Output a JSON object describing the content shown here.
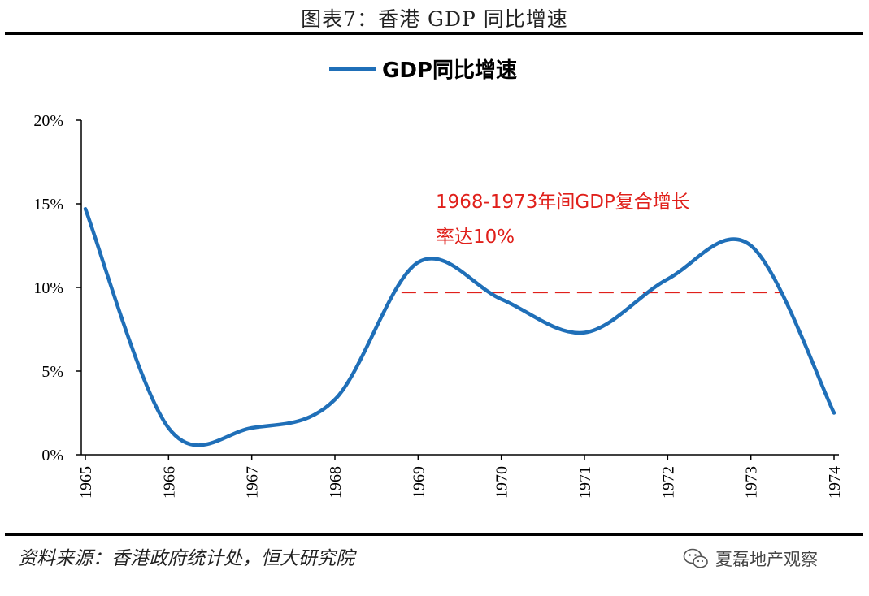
{
  "figure_title": "图表7：香港 GDP 同比增速",
  "source_text": "资料来源：香港政府统计处，恒大研究院",
  "watermark_text": "夏磊地产观察",
  "chart_data": {
    "type": "line",
    "x": [
      1965,
      1966,
      1967,
      1968,
      1969,
      1970,
      1971,
      1972,
      1973,
      1974
    ],
    "categories": [
      "1965",
      "1966",
      "1967",
      "1968",
      "1969",
      "1970",
      "1971",
      "1972",
      "1973",
      "1974"
    ],
    "series": [
      {
        "name": "GDP同比增速",
        "color": "#1f6fb8",
        "values": [
          14.7,
          1.6,
          1.6,
          3.3,
          11.5,
          9.3,
          7.3,
          10.5,
          12.5,
          2.5
        ]
      }
    ],
    "ylim": [
      0,
      20
    ],
    "yticks": [
      "0%",
      "5%",
      "10%",
      "15%",
      "20%"
    ],
    "legend_position": "top-center",
    "grid": false,
    "reference_line": {
      "value": 9.7,
      "from": 1968.8,
      "to": 1973.4,
      "color": "#e0201b",
      "style": "dashed"
    },
    "annotation": {
      "lines": [
        "1968-1973年间GDP复合增长",
        "率达10%"
      ],
      "color": "#e0201b"
    }
  }
}
